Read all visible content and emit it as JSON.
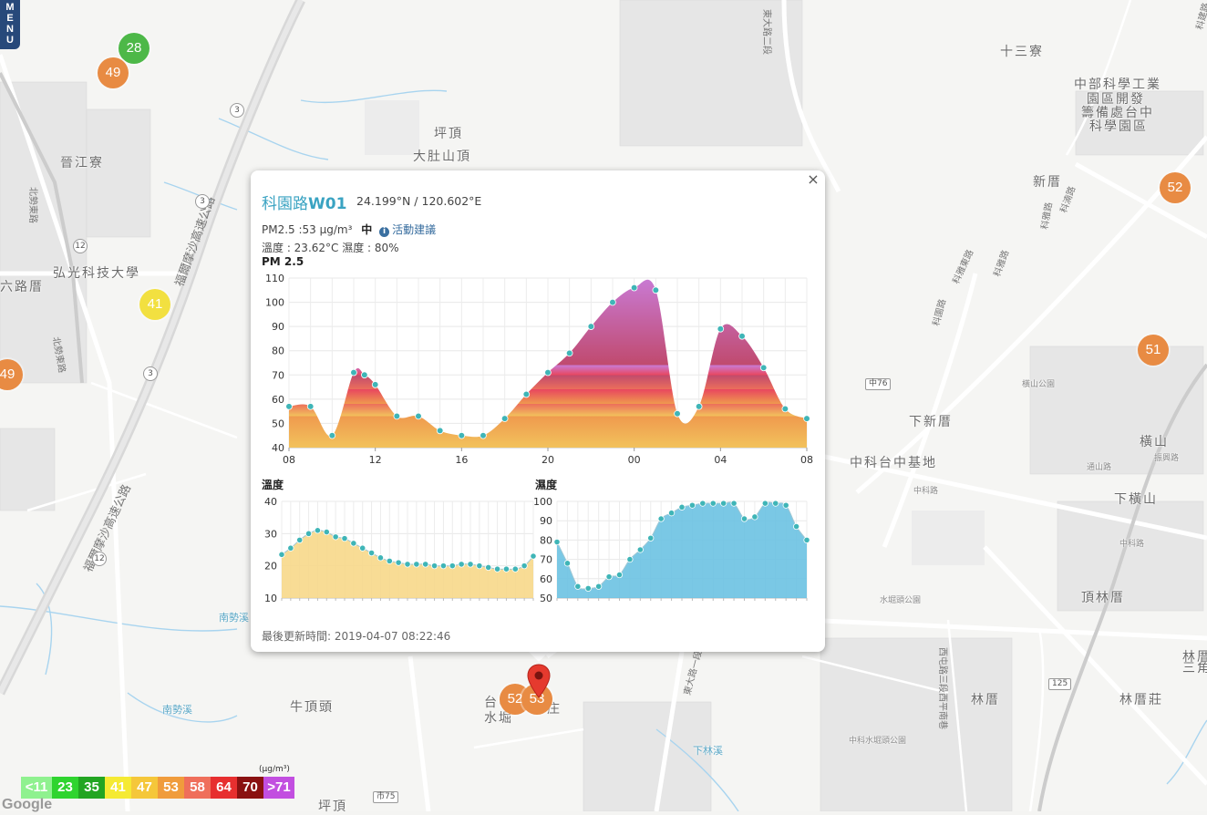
{
  "menu": {
    "letters": [
      "M",
      "E",
      "N",
      "U"
    ]
  },
  "map_labels": [
    {
      "text": "十三寮",
      "cls": ""
    },
    {
      "text": "中部科學工業",
      "cls": ""
    },
    {
      "text": "園區開發",
      "cls": ""
    },
    {
      "text": "籌備處台中",
      "cls": ""
    },
    {
      "text": "科學園區",
      "cls": ""
    },
    {
      "text": "坪頂",
      "cls": ""
    },
    {
      "text": "大肚山頂",
      "cls": ""
    },
    {
      "text": "晉江寮",
      "cls": ""
    },
    {
      "text": "新厝",
      "cls": ""
    },
    {
      "text": "弘光科技大學",
      "cls": ""
    },
    {
      "text": "六路厝",
      "cls": ""
    },
    {
      "text": "橫山公園",
      "cls": "sm"
    },
    {
      "text": "下新厝",
      "cls": ""
    },
    {
      "text": "中科台中基地",
      "cls": ""
    },
    {
      "text": "橫山",
      "cls": ""
    },
    {
      "text": "下橫山",
      "cls": ""
    },
    {
      "text": "頂林厝",
      "cls": ""
    },
    {
      "text": "水堀頭公園",
      "cls": "sm"
    },
    {
      "text": "三角埔",
      "cls": ""
    },
    {
      "text": "林厝",
      "cls": ""
    },
    {
      "text": "林厝莊",
      "cls": ""
    },
    {
      "text": "林厝",
      "cls": ""
    },
    {
      "text": "牛頂頭",
      "cls": ""
    },
    {
      "text": "中科水堀頭公園",
      "cls": "sm"
    },
    {
      "text": "坪頂",
      "cls": ""
    },
    {
      "text": "南勢溪",
      "cls": "blue"
    },
    {
      "text": "南勢溪",
      "cls": "blue"
    },
    {
      "text": "下林溪",
      "cls": "blue"
    },
    {
      "text": "中科路",
      "cls": "sm"
    },
    {
      "text": "中科路",
      "cls": "sm"
    },
    {
      "text": "通山路",
      "cls": "sm"
    },
    {
      "text": "振興路",
      "cls": "sm"
    },
    {
      "text": "台中",
      "cls": ""
    },
    {
      "text": "水堀",
      "cls": ""
    },
    {
      "text": "庄",
      "cls": ""
    }
  ],
  "road_labels": [
    {
      "text": "福爾摩沙高速公路"
    },
    {
      "text": "福爾摩沙高速公路"
    },
    {
      "text": "東大路二段"
    },
    {
      "text": "東大路一段"
    },
    {
      "text": "北勢東路"
    },
    {
      "text": "北勢東路"
    },
    {
      "text": "科雅路"
    },
    {
      "text": "科雅路"
    },
    {
      "text": "科園路"
    },
    {
      "text": "科湳路"
    },
    {
      "text": "科建路"
    },
    {
      "text": "科雅東路"
    },
    {
      "text": "西屯路三段西平南巷"
    }
  ],
  "road_shields": [
    "3",
    "3",
    "3",
    "12",
    "12",
    "中76",
    "125",
    "市75"
  ],
  "markers": [
    {
      "value": "28",
      "color": "#4db848"
    },
    {
      "value": "49",
      "color": "#e88b43"
    },
    {
      "value": "41",
      "color": "#f2e040"
    },
    {
      "value": "49",
      "color": "#e88b43"
    },
    {
      "value": "52",
      "color": "#e88b43"
    },
    {
      "value": "51",
      "color": "#e88b43"
    },
    {
      "value": "52",
      "color": "#e88b43"
    },
    {
      "value": "53",
      "color": "#e88b43"
    }
  ],
  "popup": {
    "station_prefix": "科園路",
    "station_id": "W01",
    "coords": "24.199°N / 120.602°E",
    "pm_text": "PM2.5 :53 μg/m³",
    "level": "中",
    "info_icon": "i",
    "advice_link": "活動建議",
    "env_text": "溫度 : 23.62°C 濕度 : 80%",
    "close": "×",
    "updated": "最後更新時間: 2019-04-07 08:22:46"
  },
  "chart_data": [
    {
      "type": "area",
      "title": "PM 2.5",
      "x_ticks": [
        "08",
        "12",
        "16",
        "20",
        "00",
        "04",
        "08"
      ],
      "ylim": [
        40,
        110
      ],
      "y_ticks": [
        40,
        50,
        60,
        70,
        80,
        90,
        100,
        110
      ],
      "grid": true,
      "x": [
        0,
        1,
        2,
        3,
        3.5,
        4,
        5,
        6,
        7,
        8,
        9,
        10,
        11,
        12,
        13,
        14,
        15,
        16,
        17,
        18,
        19,
        20,
        21,
        22,
        23,
        24
      ],
      "values": [
        57,
        57,
        45,
        71,
        70,
        66,
        53,
        53,
        47,
        45,
        45,
        52,
        62,
        71,
        79,
        90,
        100,
        106,
        105,
        54,
        57,
        89,
        86,
        73,
        56,
        52
      ],
      "fill_bands": [
        {
          "from": 40,
          "to": 53,
          "color": "#f2c25c"
        },
        {
          "from": 53,
          "to": 58,
          "color": "#ef9a4e"
        },
        {
          "from": 58,
          "to": 64,
          "color": "#ec6f5b"
        },
        {
          "from": 64,
          "to": 70,
          "color": "#e8475f"
        },
        {
          "from": 70,
          "to": 74,
          "color": "#c04a6e"
        },
        {
          "from": 74,
          "to": 110,
          "color": "#c97ad4"
        }
      ],
      "point_color": "#3fb5b7"
    },
    {
      "type": "area",
      "title": "溫度",
      "ylim": [
        10,
        40
      ],
      "y_ticks": [
        10,
        20,
        30,
        40
      ],
      "grid": true,
      "values": [
        23.5,
        25.5,
        28,
        30,
        31,
        30.5,
        29,
        28.5,
        27,
        25.5,
        24,
        22.5,
        21.5,
        21,
        20.5,
        20.5,
        20.5,
        20,
        20,
        20,
        20.5,
        20.5,
        20,
        19.5,
        19,
        19,
        19,
        20,
        23
      ],
      "fill_color": "#f7d889",
      "point_color": "#3fb5b7"
    },
    {
      "type": "area",
      "title": "濕度",
      "ylim": [
        50,
        100
      ],
      "y_ticks": [
        50,
        60,
        70,
        80,
        90,
        100
      ],
      "grid": true,
      "values": [
        79,
        68,
        56,
        55,
        56,
        61,
        62,
        70,
        75,
        81,
        91,
        94,
        97,
        98,
        99,
        99,
        99,
        99,
        91,
        92,
        99,
        99,
        98,
        87,
        80
      ],
      "fill_color": "#6cc2e2",
      "point_color": "#3fb5b7"
    }
  ],
  "legend": {
    "unit": "(μg/m³)",
    "items": [
      {
        "label": "<11",
        "color": "#8ff18f"
      },
      {
        "label": "23",
        "color": "#2fd42f"
      },
      {
        "label": "35",
        "color": "#22a522"
      },
      {
        "label": "41",
        "color": "#f5ea33"
      },
      {
        "label": "47",
        "color": "#f5c73a"
      },
      {
        "label": "53",
        "color": "#f09c3c"
      },
      {
        "label": "58",
        "color": "#ef6f5b"
      },
      {
        "label": "64",
        "color": "#e72f2f"
      },
      {
        "label": "70",
        "color": "#8a1111"
      },
      {
        "label": ">71",
        "color": "#c24fe0"
      }
    ]
  },
  "attribution": "Google"
}
